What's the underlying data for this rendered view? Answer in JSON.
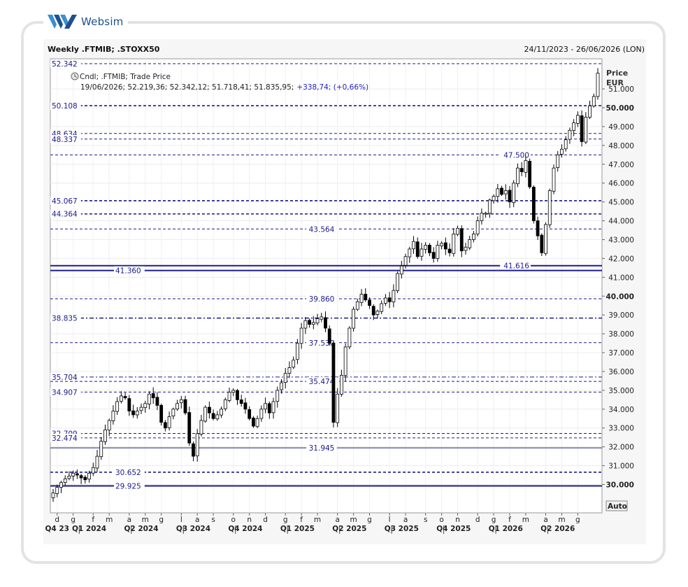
{
  "brand": {
    "name": "Websim"
  },
  "header": {
    "title": "Weekly .FTMIB; .STOXX50",
    "date_range": "24/11/2023 - 26/06/2026 (LON)"
  },
  "legend": {
    "line1": "Cndl; .FTMIB; Trade Price",
    "line2": "19/06/2026; 52.219,36; 52.342,12; 51.718,41; 51.835,95;",
    "change": "+338,74; (+0,66%)"
  },
  "axis": {
    "price_label": "Price",
    "currency_label": "EUR",
    "auto_button": "Auto"
  },
  "chart_data": {
    "type": "candlestick",
    "title": "Weekly .FTMIB; .STOXX50",
    "ylim": [
      29000,
      52600
    ],
    "y_ticks": [
      "30.000",
      "31.000",
      "32.000",
      "33.000",
      "34.000",
      "35.000",
      "36.000",
      "37.000",
      "38.000",
      "39.000",
      "40.000",
      "41.000",
      "42.000",
      "43.000",
      "44.000",
      "45.000",
      "46.000",
      "47.000",
      "48.000",
      "49.000",
      "50.000",
      "51.000"
    ],
    "y_tick_values": [
      30000,
      31000,
      32000,
      33000,
      34000,
      35000,
      36000,
      37000,
      38000,
      39000,
      40000,
      41000,
      42000,
      43000,
      44000,
      45000,
      46000,
      47000,
      48000,
      49000,
      50000,
      51000
    ],
    "bold_ticks": [
      "30.000",
      "40.000",
      "50.000"
    ],
    "month_labels": [
      {
        "label": "d",
        "week": 1
      },
      {
        "label": "g",
        "week": 5
      },
      {
        "label": "f",
        "week": 10
      },
      {
        "label": "m",
        "week": 14
      },
      {
        "label": "a",
        "week": 19
      },
      {
        "label": "m",
        "week": 23
      },
      {
        "label": "g",
        "week": 27
      },
      {
        "label": "l",
        "week": 32
      },
      {
        "label": "a",
        "week": 36
      },
      {
        "label": "s",
        "week": 40
      },
      {
        "label": "o",
        "week": 45
      },
      {
        "label": "n",
        "week": 49
      },
      {
        "label": "d",
        "week": 53
      },
      {
        "label": "g",
        "week": 58
      },
      {
        "label": "f",
        "week": 62
      },
      {
        "label": "m",
        "week": 66
      },
      {
        "label": "a",
        "week": 71
      },
      {
        "label": "m",
        "week": 75
      },
      {
        "label": "g",
        "week": 79
      },
      {
        "label": "l",
        "week": 84
      },
      {
        "label": "a",
        "week": 88
      },
      {
        "label": "s",
        "week": 93
      },
      {
        "label": "o",
        "week": 97
      },
      {
        "label": "n",
        "week": 101
      },
      {
        "label": "d",
        "week": 106
      },
      {
        "label": "g",
        "week": 110
      },
      {
        "label": "f",
        "week": 114
      },
      {
        "label": "m",
        "week": 118
      },
      {
        "label": "a",
        "week": 123
      },
      {
        "label": "m",
        "week": 127
      },
      {
        "label": "g",
        "week": 131
      }
    ],
    "quarter_labels": [
      {
        "label": "Q4 23",
        "week": 1
      },
      {
        "label": "Q1 2024",
        "week": 9
      },
      {
        "label": "Q2 2024",
        "week": 22
      },
      {
        "label": "Q3 2024",
        "week": 35
      },
      {
        "label": "Q4 2024",
        "week": 48
      },
      {
        "label": "Q1 2025",
        "week": 61
      },
      {
        "label": "Q2 2025",
        "week": 74
      },
      {
        "label": "Q3 2025",
        "week": 87
      },
      {
        "label": "Q4 2025",
        "week": 100
      },
      {
        "label": "Q1 2026",
        "week": 113
      },
      {
        "label": "Q2 2026",
        "week": 126
      }
    ],
    "quarter_separators": [
      6,
      19,
      32,
      45,
      58,
      71,
      84,
      97,
      110,
      123
    ],
    "levels": [
      {
        "value": 52342,
        "label": "52.342",
        "label_pos": "left",
        "style": "dash",
        "weight": 1
      },
      {
        "value": 50108,
        "label": "50.108",
        "label_pos": "left",
        "style": "dash",
        "weight": 1.6
      },
      {
        "value": 48634,
        "label": "48.634",
        "label_pos": "left",
        "style": "dash",
        "weight": 1
      },
      {
        "value": 48337,
        "label": "48.337",
        "label_pos": "left",
        "style": "dash",
        "weight": 1
      },
      {
        "value": 47500,
        "label": "47.500",
        "label_pos": "right",
        "style": "dash",
        "weight": 1
      },
      {
        "value": 45067,
        "label": "45.067",
        "label_pos": "left",
        "style": "dash",
        "weight": 1.6
      },
      {
        "value": 44364,
        "label": "44.364",
        "label_pos": "left",
        "style": "dash",
        "weight": 1.6
      },
      {
        "value": 43564,
        "label": "43.564",
        "label_pos": "center",
        "style": "dash",
        "weight": 1
      },
      {
        "value": 41616,
        "label": "41.616",
        "label_pos": "right",
        "style": "solid",
        "weight": 2
      },
      {
        "value": 41360,
        "label": "41.360",
        "label_pos": "leftmid",
        "style": "solid",
        "weight": 2
      },
      {
        "value": 39860,
        "label": "39.860",
        "label_pos": "center",
        "style": "dash",
        "weight": 1
      },
      {
        "value": 38835,
        "label": "38.835",
        "label_pos": "left",
        "style": "dashdot",
        "weight": 1.4
      },
      {
        "value": 37530,
        "label": "37.530",
        "label_pos": "center",
        "style": "dash",
        "weight": 1
      },
      {
        "value": 35704,
        "label": "35.704",
        "label_pos": "left",
        "style": "dashdot",
        "weight": 1
      },
      {
        "value": 35474,
        "label": "35.474",
        "label_pos": "center",
        "style": "dash",
        "weight": 1
      },
      {
        "value": 34907,
        "label": "34.907",
        "label_pos": "left",
        "style": "dash",
        "weight": 1
      },
      {
        "value": 32709,
        "label": "32.709",
        "label_pos": "left",
        "style": "dash",
        "weight": 1
      },
      {
        "value": 32474,
        "label": "32.474",
        "label_pos": "left",
        "style": "dash",
        "weight": 1
      },
      {
        "value": 31945,
        "label": "31.945",
        "label_pos": "center",
        "style": "solid",
        "weight": 1
      },
      {
        "value": 30652,
        "label": "30.652",
        "label_pos": "leftmid",
        "style": "dash",
        "weight": 1.6
      },
      {
        "value": 29925,
        "label": "29.925",
        "label_pos": "leftmid",
        "style": "solid",
        "weight": 2
      }
    ],
    "closes": [
      29550,
      29850,
      30100,
      30300,
      30450,
      30600,
      30500,
      30350,
      30250,
      30600,
      30900,
      31500,
      32300,
      32900,
      33400,
      33900,
      34400,
      34700,
      34600,
      33900,
      33700,
      33900,
      34100,
      34300,
      34800,
      34600,
      34200,
      33300,
      33000,
      33600,
      34000,
      34300,
      34500,
      33800,
      32200,
      31500,
      32700,
      33400,
      34100,
      33800,
      33500,
      33700,
      34000,
      34500,
      34900,
      35000,
      34500,
      34300,
      34000,
      33500,
      33100,
      33500,
      34000,
      34300,
      33800,
      34400,
      35000,
      35400,
      35900,
      36200,
      36600,
      37500,
      38300,
      38700,
      38500,
      38600,
      38800,
      38900,
      38300,
      37500,
      33300,
      34800,
      35800,
      37300,
      38300,
      39300,
      39700,
      40100,
      39800,
      39500,
      39000,
      39200,
      39600,
      39900,
      39700,
      40300,
      41200,
      41600,
      42100,
      42500,
      42900,
      42100,
      42500,
      42700,
      42300,
      42000,
      42700,
      42800,
      42500,
      42300,
      43300,
      43600,
      42400,
      42600,
      43000,
      43300,
      44000,
      44400,
      44400,
      45100,
      45300,
      45700,
      45400,
      45600,
      45000,
      46000,
      46800,
      46600,
      47200,
      45800,
      44000,
      43200,
      42300,
      43800,
      45600,
      46800,
      47500,
      47800,
      48300,
      48800,
      49200,
      49600,
      48200,
      49500,
      50100,
      50600,
      51836
    ],
    "bars": 137,
    "currency": "EUR"
  }
}
